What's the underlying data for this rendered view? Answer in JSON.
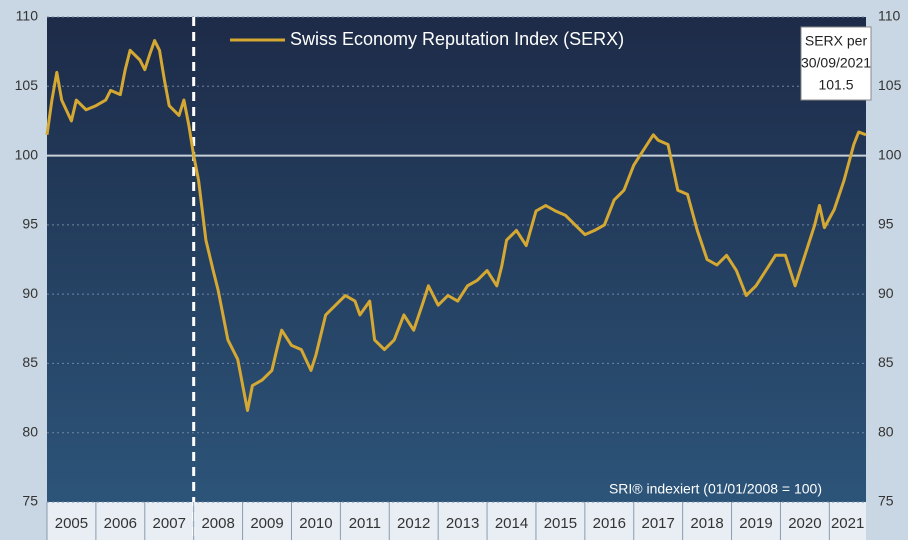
{
  "chart_data": {
    "type": "line",
    "legend": "Swiss Economy Reputation Index (SERX)",
    "note": "SRI® indexiert (01/01/2008 = 100)",
    "annotation": {
      "lines": [
        "SERX per",
        "30/09/2021"
      ],
      "value": 101.5
    },
    "reference_y": 100,
    "reference_x": 2008,
    "color": "#d4a832",
    "xlim": [
      2005,
      2021.75
    ],
    "xticks": [
      2005,
      2006,
      2007,
      2008,
      2009,
      2010,
      2011,
      2012,
      2013,
      2014,
      2015,
      2016,
      2017,
      2018,
      2019,
      2020,
      2021
    ],
    "ylim": [
      75,
      110
    ],
    "yticks": [
      75,
      80,
      85,
      90,
      95,
      100,
      105,
      110
    ],
    "grid": true,
    "x": [
      2005.0,
      2005.1,
      2005.2,
      2005.3,
      2005.5,
      2005.6,
      2005.8,
      2006.0,
      2006.2,
      2006.3,
      2006.5,
      2006.6,
      2006.7,
      2006.9,
      2007.0,
      2007.1,
      2007.2,
      2007.3,
      2007.4,
      2007.5,
      2007.7,
      2007.8,
      2007.9,
      2008.0,
      2008.1,
      2008.25,
      2008.4,
      2008.5,
      2008.7,
      2008.9,
      2009.1,
      2009.2,
      2009.4,
      2009.6,
      2009.7,
      2009.8,
      2010.0,
      2010.2,
      2010.4,
      2010.5,
      2010.7,
      2010.9,
      2011.1,
      2011.3,
      2011.4,
      2011.6,
      2011.7,
      2011.9,
      2012.1,
      2012.3,
      2012.5,
      2012.7,
      2012.8,
      2013.0,
      2013.2,
      2013.4,
      2013.6,
      2013.8,
      2014.0,
      2014.2,
      2014.3,
      2014.4,
      2014.6,
      2014.8,
      2015.0,
      2015.2,
      2015.4,
      2015.6,
      2015.8,
      2016.0,
      2016.2,
      2016.4,
      2016.6,
      2016.8,
      2017.0,
      2017.2,
      2017.4,
      2017.5,
      2017.7,
      2017.9,
      2018.1,
      2018.3,
      2018.5,
      2018.7,
      2018.9,
      2019.1,
      2019.3,
      2019.5,
      2019.7,
      2019.9,
      2020.1,
      2020.3,
      2020.5,
      2020.7,
      2020.8,
      2020.9,
      2021.1,
      2021.3,
      2021.5,
      2021.6,
      2021.75
    ],
    "values": [
      101.5,
      104,
      106,
      104,
      102.5,
      104,
      103.3,
      103.6,
      104,
      104.7,
      104.4,
      106.2,
      107.6,
      106.9,
      106.2,
      107.3,
      108.3,
      107.6,
      105.5,
      103.6,
      102.9,
      104,
      102.2,
      100,
      98.2,
      93.9,
      91.7,
      90.3,
      86.7,
      85.3,
      81.6,
      83.4,
      83.8,
      84.5,
      86,
      87.4,
      86.3,
      86,
      84.5,
      85.6,
      88.5,
      89.2,
      89.9,
      89.5,
      88.5,
      89.5,
      86.7,
      86,
      86.7,
      88.5,
      87.4,
      89.5,
      90.6,
      89.2,
      89.9,
      89.5,
      90.6,
      91,
      91.7,
      90.6,
      92,
      93.9,
      94.6,
      93.5,
      96,
      96.4,
      96,
      95.7,
      95,
      94.3,
      94.6,
      95,
      96.8,
      97.5,
      99.3,
      100.4,
      101.5,
      101.1,
      100.8,
      97.5,
      97.2,
      94.6,
      92.5,
      92.1,
      92.8,
      91.7,
      89.9,
      90.6,
      91.7,
      92.8,
      92.8,
      90.6,
      92.8,
      95,
      96.4,
      94.8,
      96.1,
      98.2,
      100.8,
      101.7,
      101.5
    ]
  }
}
